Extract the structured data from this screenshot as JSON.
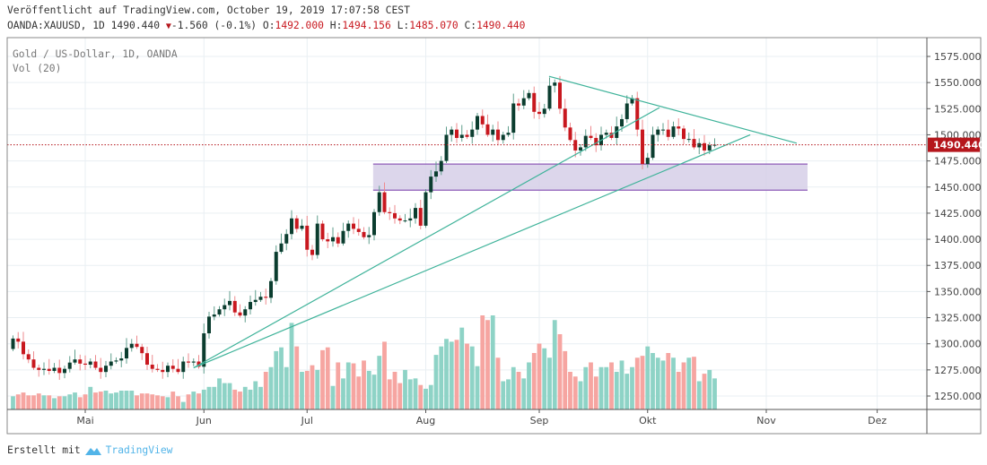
{
  "header": {
    "published": "Veröffentlicht auf TradingView.com, October 19, 2019 17:07:58 CEST",
    "symbol": "OANDA:XAUUSD, 1D 1490.440",
    "change_icon": "triangle-down-icon",
    "change": "-1.560 (-0.1%)",
    "o_label": "O:",
    "o": "1492.000",
    "h_label": "H:",
    "h": "1494.156",
    "l_label": "L:",
    "l": "1485.070",
    "c_label": "C:",
    "c": "1490.440"
  },
  "legend": {
    "title": "Gold  / US-Dollar, 1D, OANDA",
    "volume": "Vol (20)"
  },
  "footer": {
    "created_with": "Erstellt mit",
    "brand": "TradingView"
  },
  "colors": {
    "up": "#0b3d2f",
    "down": "#c8181f",
    "vol_up": "#8ed3c6",
    "vol_down": "#f6a5a1",
    "trendline": "#3fb39a",
    "zone_fill": "#d6cfe8",
    "zone_border": "#8e5bb8",
    "price_tag": "#b5161c"
  },
  "chart_data": {
    "type": "candlestick",
    "title": "Gold / US-Dollar, 1D, OANDA",
    "xlabel": "",
    "ylabel": "",
    "ylim": [
      1235,
      1592
    ],
    "y_ticks": [
      "1575.000",
      "1550.000",
      "1525.000",
      "1500.000",
      "1475.000",
      "1450.000",
      "1425.000",
      "1400.000",
      "1375.000",
      "1350.000",
      "1325.000",
      "1300.000",
      "1275.000",
      "1250.000"
    ],
    "y_tick_values": [
      1575,
      1550,
      1525,
      1500,
      1475,
      1450,
      1425,
      1400,
      1375,
      1350,
      1325,
      1300,
      1275,
      1250
    ],
    "x_ticks": [
      {
        "label": "Mai",
        "bar": 14
      },
      {
        "label": "Jun",
        "bar": 37
      },
      {
        "label": "Jul",
        "bar": 57
      },
      {
        "label": "Aug",
        "bar": 80
      },
      {
        "label": "Sep",
        "bar": 102
      },
      {
        "label": "Okt",
        "bar": 123
      },
      {
        "label": "Nov",
        "bar": 146
      },
      {
        "label": "Dez",
        "bar": 167.5
      }
    ],
    "last_price": 1490.44,
    "last_price_label": "1490.440",
    "first_open": 1295,
    "close": [
      1305,
      1302,
      1290,
      1285,
      1277,
      1275,
      1276,
      1274,
      1277,
      1272,
      1276,
      1282,
      1285,
      1281,
      1280,
      1283,
      1277,
      1273,
      1279,
      1283,
      1284,
      1286,
      1296,
      1300,
      1297,
      1291,
      1280,
      1276,
      1275,
      1273,
      1279,
      1276,
      1273,
      1283,
      1282,
      1283,
      1278,
      1310,
      1326,
      1328,
      1333,
      1337,
      1341,
      1330,
      1327,
      1333,
      1340,
      1342,
      1345,
      1344,
      1360,
      1388,
      1396,
      1405,
      1420,
      1410,
      1413,
      1390,
      1385,
      1415,
      1400,
      1398,
      1402,
      1396,
      1408,
      1415,
      1410,
      1407,
      1402,
      1404,
      1426,
      1445,
      1426,
      1425,
      1420,
      1418,
      1418,
      1420,
      1430,
      1413,
      1445,
      1460,
      1465,
      1475,
      1500,
      1505,
      1497,
      1500,
      1498,
      1505,
      1518,
      1510,
      1500,
      1505,
      1495,
      1500,
      1502,
      1530,
      1528,
      1535,
      1540,
      1522,
      1520,
      1525,
      1547,
      1550,
      1525,
      1507,
      1495,
      1485,
      1488,
      1499,
      1497,
      1490,
      1500,
      1502,
      1497,
      1508,
      1515,
      1530,
      1535,
      1505,
      1472,
      1478,
      1500,
      1505,
      1505,
      1498,
      1508,
      1506,
      1496,
      1496,
      1488,
      1492,
      1485,
      1490,
      1490.44
    ],
    "volume": [
      14,
      16,
      18,
      15,
      15,
      17,
      15,
      15,
      12,
      14,
      14,
      16,
      18,
      13,
      16,
      24,
      18,
      19,
      20,
      17,
      18,
      20,
      20,
      20,
      15,
      17,
      17,
      16,
      15,
      14,
      13,
      19,
      14,
      8,
      16,
      19,
      17,
      21,
      24,
      24,
      33,
      28,
      28,
      21,
      19,
      24,
      21,
      30,
      24,
      40,
      45,
      62,
      66,
      45,
      92,
      67,
      40,
      41,
      47,
      42,
      63,
      66,
      25,
      50,
      33,
      50,
      49,
      35,
      52,
      41,
      37,
      57,
      72,
      32,
      40,
      28,
      42,
      32,
      33,
      26,
      22,
      26,
      58,
      67,
      75,
      72,
      74,
      87,
      70,
      67,
      46,
      100,
      95,
      100,
      55,
      30,
      32,
      45,
      40,
      33,
      50,
      60,
      70,
      65,
      55,
      95,
      80,
      62,
      40,
      35,
      30,
      45,
      50,
      35,
      45,
      45,
      50,
      40,
      52,
      38,
      45,
      55,
      57,
      67,
      60,
      55,
      52,
      60,
      55,
      40,
      50,
      55,
      56,
      30,
      38,
      42,
      33
    ],
    "volume_max": 100,
    "drawings": {
      "trendlines": [
        {
          "name": "support-line-steep",
          "from": [
            35,
            1277
          ],
          "to": [
            125.3,
            1526
          ]
        },
        {
          "name": "support-line-shallow",
          "from": [
            35,
            1277
          ],
          "to": [
            142.9,
            1500
          ]
        },
        {
          "name": "resistance-line",
          "from": [
            103.9,
            1556
          ],
          "to": [
            151.9,
            1492
          ]
        }
      ],
      "zone": {
        "from_bar": 69.8,
        "to_bar": 154,
        "top": 1472,
        "bottom": 1447
      }
    }
  }
}
